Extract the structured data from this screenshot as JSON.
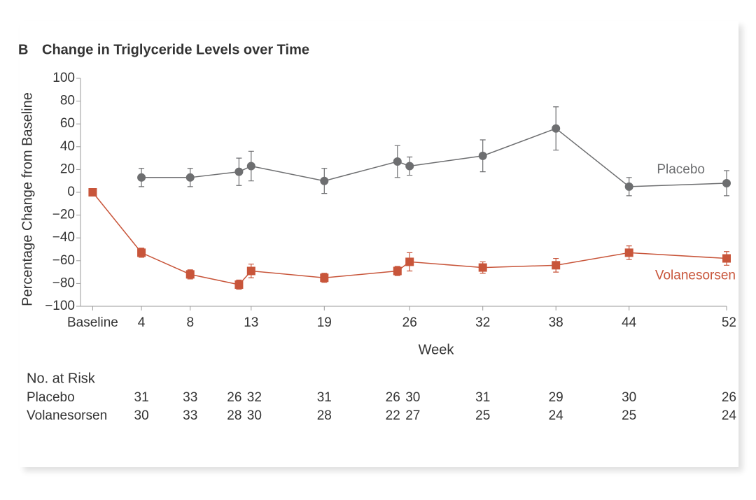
{
  "chart_data": {
    "type": "line",
    "panel_label": "B",
    "title": "Change in Triglyceride Levels over Time",
    "ylabel": "Percentage Change from Baseline",
    "xlabel": "Week",
    "xlim": [
      -1,
      52
    ],
    "xticks": [
      {
        "value": 0,
        "label": "Baseline"
      },
      4,
      8,
      13,
      19,
      26,
      32,
      38,
      44,
      52
    ],
    "ylim": [
      -100,
      100
    ],
    "yticks": [
      {
        "value": -100,
        "label": "−100"
      },
      {
        "value": -80,
        "label": "−80"
      },
      {
        "value": -60,
        "label": "−60"
      },
      {
        "value": -40,
        "label": "−40"
      },
      {
        "value": -20,
        "label": "−20"
      },
      0,
      20,
      40,
      60,
      80,
      100
    ],
    "series": [
      {
        "name": "Placebo",
        "color": "#6d6e70",
        "marker": "circle",
        "x": [
          4,
          8,
          12,
          13,
          19,
          25,
          26,
          32,
          38,
          44,
          52
        ],
        "values": [
          13,
          13,
          18,
          23,
          10,
          27,
          23,
          32,
          56,
          5,
          8
        ],
        "errors": [
          8,
          8,
          12,
          13,
          11,
          14,
          8,
          14,
          19,
          8,
          11
        ]
      },
      {
        "name": "Volanesorsen",
        "color": "#c8553a",
        "marker": "square",
        "x": [
          0,
          4,
          8,
          12,
          13,
          19,
          25,
          26,
          32,
          38,
          44,
          52
        ],
        "values": [
          0,
          -53,
          -72,
          -81,
          -69,
          -75,
          -69,
          -61,
          -66,
          -64,
          -53,
          -58
        ],
        "errors": [
          0,
          4,
          4,
          4,
          6,
          4,
          4,
          8,
          5,
          6,
          6,
          6
        ]
      }
    ],
    "at_risk": {
      "title": "No. at Risk",
      "rows": [
        {
          "name": "Placebo",
          "values": [
            31,
            33,
            26,
            32,
            31,
            26,
            30,
            31,
            29,
            30,
            26
          ]
        },
        {
          "name": "Volanesorsen",
          "values": [
            30,
            33,
            28,
            30,
            28,
            22,
            27,
            25,
            24,
            25,
            24
          ]
        }
      ]
    }
  }
}
